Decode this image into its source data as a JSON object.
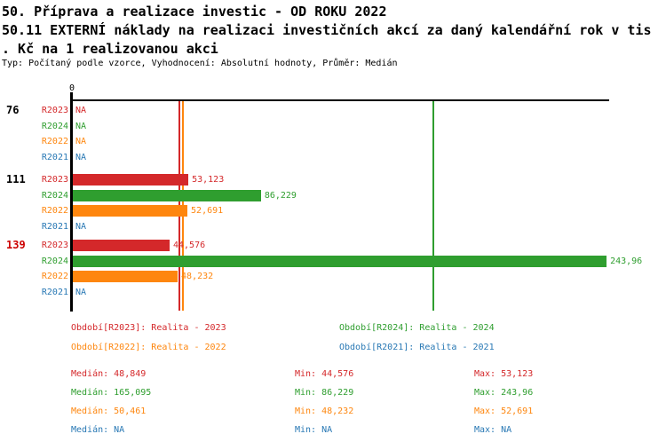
{
  "header": {
    "title_line1": "50. Příprava a realizace investic - OD ROKU 2022",
    "title_line2": "50.11 EXTERNÍ náklady na realizaci investičních akcí za daný kalendářní rok v tis",
    "title_line3": ". Kč na 1 realizovanou akci",
    "subtitle": "Typ: Počítaný podle vzorce, Vyhodnocení: Absolutní hodnoty, Průměr: Medián"
  },
  "colors": {
    "r2023": "#d4282a",
    "r2024": "#2f9e2f",
    "r2022": "#fe860e",
    "r2021": "#2878b4",
    "axis": "#000000",
    "highlight": "#cc0000"
  },
  "chart_data": {
    "type": "bar",
    "orientation": "horizontal",
    "axis_origin_label": "0",
    "unit": "tis. Kč na 1 realizovanou akci",
    "xlim": [
      0,
      245
    ],
    "groups": [
      {
        "id": "76",
        "highlighted": false,
        "rows": [
          {
            "year": "R2023",
            "value": null,
            "display": "NA"
          },
          {
            "year": "R2024",
            "value": null,
            "display": "NA"
          },
          {
            "year": "R2022",
            "value": null,
            "display": "NA"
          },
          {
            "year": "R2021",
            "value": null,
            "display": "NA"
          }
        ]
      },
      {
        "id": "111",
        "highlighted": false,
        "rows": [
          {
            "year": "R2023",
            "value": 53.123,
            "display": "53,123"
          },
          {
            "year": "R2024",
            "value": 86.229,
            "display": "86,229"
          },
          {
            "year": "R2022",
            "value": 52.691,
            "display": "52,691"
          },
          {
            "year": "R2021",
            "value": null,
            "display": "NA"
          }
        ]
      },
      {
        "id": "139",
        "highlighted": true,
        "rows": [
          {
            "year": "R2023",
            "value": 44.576,
            "display": "44,576"
          },
          {
            "year": "R2024",
            "value": 243.96,
            "display": "243,96"
          },
          {
            "year": "R2022",
            "value": 48.232,
            "display": "48,232"
          },
          {
            "year": "R2021",
            "value": null,
            "display": "NA"
          }
        ]
      }
    ],
    "median_lines": [
      {
        "series": "R2023",
        "value": 48.849
      },
      {
        "series": "R2022",
        "value": 50.461
      },
      {
        "series": "R2024",
        "value": 165.095
      }
    ]
  },
  "legend": {
    "items": [
      {
        "label": "Období[R2023]: Realita - 2023",
        "color_key": "r2023"
      },
      {
        "label": "Období[R2024]: Realita - 2024",
        "color_key": "r2024"
      },
      {
        "label": "Období[R2022]: Realita - 2022",
        "color_key": "r2022"
      },
      {
        "label": "Období[R2021]: Realita - 2021",
        "color_key": "r2021"
      }
    ]
  },
  "stats": {
    "rows": [
      {
        "color_key": "r2023",
        "cells": [
          "Medián: 48,849",
          "Min: 44,576",
          "Max: 53,123"
        ]
      },
      {
        "color_key": "r2024",
        "cells": [
          "Medián: 165,095",
          "Min: 86,229",
          "Max: 243,96"
        ]
      },
      {
        "color_key": "r2022",
        "cells": [
          "Medián: 50,461",
          "Min: 48,232",
          "Max: 52,691"
        ]
      },
      {
        "color_key": "r2021",
        "cells": [
          "Medián: NA",
          "Min: NA",
          "Max: NA"
        ]
      }
    ]
  }
}
